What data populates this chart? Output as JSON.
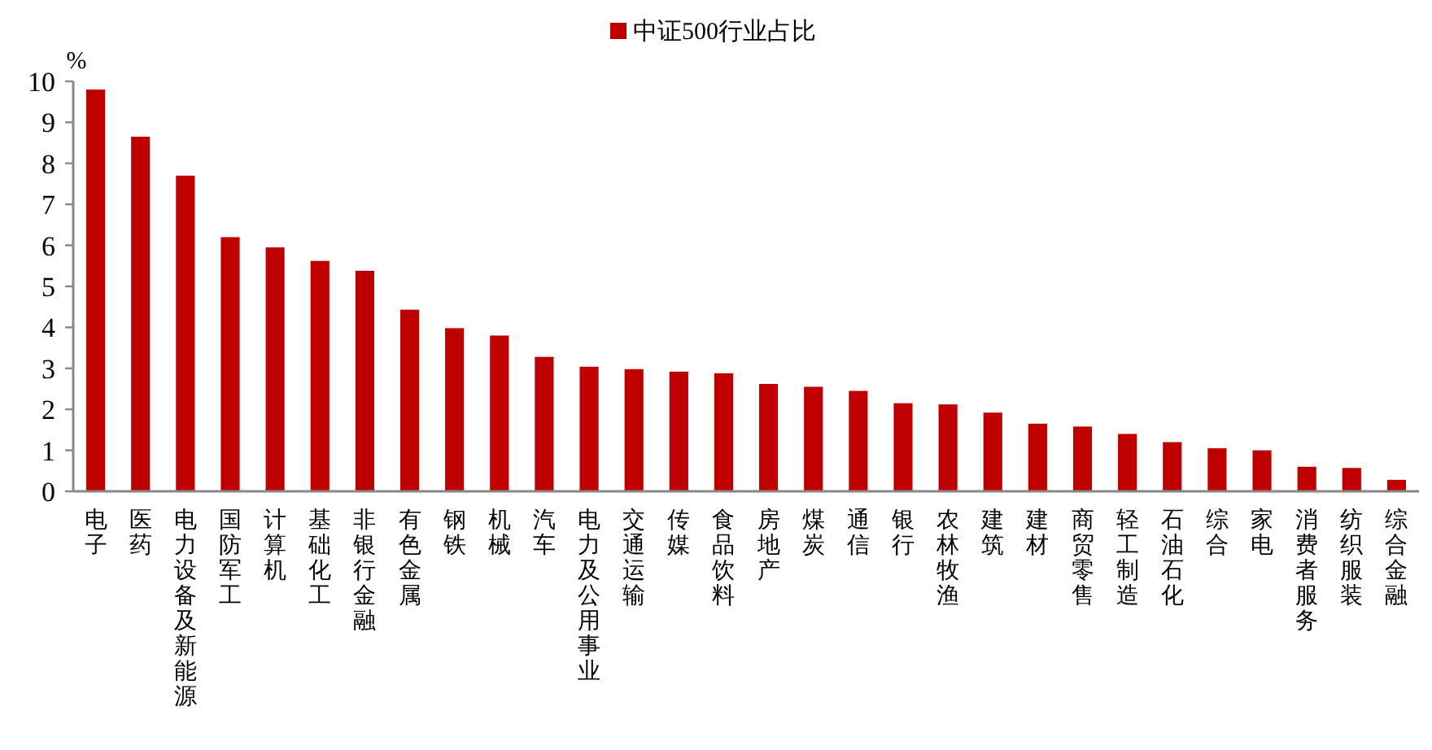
{
  "chart_data": {
    "type": "bar",
    "ylabel": "%",
    "legend": "top",
    "categories": [
      "电子",
      "医药",
      "电力设备及新能源",
      "国防军工",
      "计算机",
      "基础化工",
      "非银行金融",
      "有色金属",
      "钢铁",
      "机械",
      "汽车",
      "电力及公用事业",
      "交通运输",
      "传媒",
      "食品饮料",
      "房地产",
      "煤炭",
      "通信",
      "银行",
      "农林牧渔",
      "建筑",
      "建材",
      "商贸零售",
      "轻工制造",
      "石油石化",
      "综合",
      "家电",
      "消费者服务",
      "纺织服装",
      "综合金融"
    ],
    "series": [
      {
        "name": "中证500行业占比",
        "color": "#c00000",
        "values": [
          9.8,
          8.65,
          7.7,
          6.2,
          5.95,
          5.62,
          5.38,
          4.43,
          3.98,
          3.8,
          3.28,
          3.04,
          2.98,
          2.92,
          2.88,
          2.62,
          2.55,
          2.45,
          2.15,
          2.12,
          1.92,
          1.65,
          1.58,
          1.4,
          1.2,
          1.05,
          1.0,
          0.6,
          0.57,
          0.28
        ]
      }
    ],
    "ylim": [
      0,
      10
    ],
    "yticks": [
      0,
      1,
      2,
      3,
      4,
      5,
      6,
      7,
      8,
      9,
      10
    ]
  }
}
